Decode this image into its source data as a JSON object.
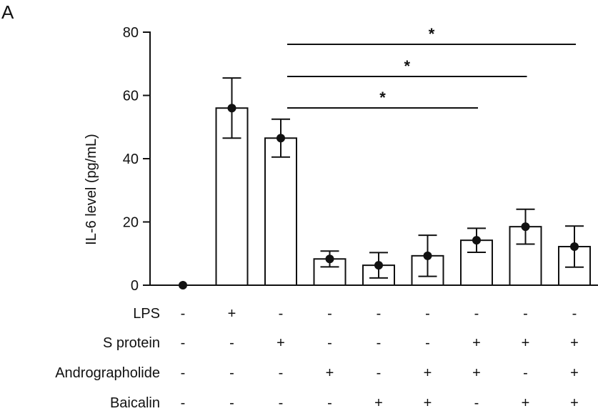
{
  "chart_data": {
    "type": "bar",
    "panel_label": "A",
    "title": "",
    "xlabel": "",
    "ylabel": "IL-6 level (pg/mL)",
    "ylim": [
      0,
      80
    ],
    "yticks": [
      "0",
      "20",
      "40",
      "60",
      "80"
    ],
    "grid": false,
    "legend": "none",
    "groups": 9,
    "series": [
      {
        "values": [
          0,
          56,
          46.5,
          8.3,
          6.3,
          9.3,
          14.2,
          18.5,
          12.2
        ],
        "error": [
          0,
          9.5,
          6,
          2.5,
          4,
          6.5,
          3.8,
          5.5,
          6.5
        ]
      }
    ],
    "conditions": [
      {
        "label": "LPS",
        "marks": [
          "-",
          "+",
          "-",
          "-",
          "-",
          "-",
          "-",
          "-",
          "-"
        ]
      },
      {
        "label": "S protein",
        "marks": [
          "-",
          "-",
          "+",
          "-",
          "-",
          "-",
          "+",
          "+",
          "+"
        ]
      },
      {
        "label": "Andrographolide",
        "marks": [
          "-",
          "-",
          "-",
          "+",
          "-",
          "+",
          "+",
          "-",
          "+"
        ]
      },
      {
        "label": "Baicalin",
        "marks": [
          "-",
          "-",
          "-",
          "-",
          "+",
          "+",
          "-",
          "+",
          "+"
        ]
      }
    ],
    "annotations": [
      {
        "from": 2,
        "to": 6,
        "label": "*"
      },
      {
        "from": 2,
        "to": 7,
        "label": "*"
      },
      {
        "from": 2,
        "to": 8,
        "label": "*"
      }
    ]
  }
}
